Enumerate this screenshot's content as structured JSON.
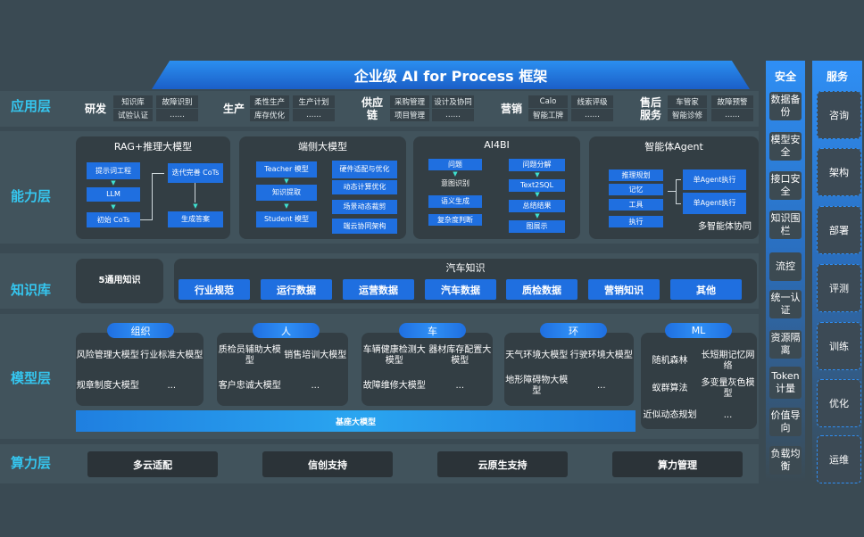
{
  "title": "企业级 AI for Process 框架",
  "layers": [
    "应用层",
    "能力层",
    "知识库",
    "模型层",
    "算力层"
  ],
  "app": [
    {
      "name": "研发",
      "items": [
        "知识库",
        "试验认证",
        "故障识别",
        "……"
      ]
    },
    {
      "name": "生产",
      "items": [
        "柔性生产",
        "库存优化",
        "生产计划",
        "……"
      ]
    },
    {
      "name": "供应链",
      "items": [
        "采购管理",
        "项目管理",
        "设计及协同",
        "……"
      ]
    },
    {
      "name": "营销",
      "items": [
        "Calo",
        "智能工牌",
        "线索评级",
        "……"
      ]
    },
    {
      "name": "售后服务",
      "items": [
        "车管家",
        "智能诊修",
        "故障预警",
        "……"
      ]
    }
  ],
  "cap": {
    "rag": {
      "title": "RAG+推理大模型",
      "items": [
        "提示词工程",
        "LLM",
        "初始 CoTs",
        "迭代完善 CoTs",
        "生成答案"
      ]
    },
    "edge": {
      "title": "端侧大模型",
      "items": [
        "Teacher 模型",
        "知识提取",
        "Student 模型",
        "硬件适配与优化",
        "动态计算优化",
        "场景动态裁剪",
        "端云协同架构"
      ]
    },
    "bi": {
      "title": "AI4BI",
      "items": [
        "问题",
        "意图识别",
        "语义生成",
        "复杂度判断",
        "问题分解",
        "Text2SQL",
        "总结结果",
        "图展示"
      ]
    },
    "agent": {
      "title": "智能体Agent",
      "items": [
        "推理规划",
        "记忆",
        "工具",
        "执行",
        "单Agent执行",
        "单Agent执行",
        "多智能体协同"
      ]
    }
  },
  "kb": {
    "general": "5通用知识",
    "car_title": "汽车知识",
    "items": [
      "行业规范",
      "运行数据",
      "运营数据",
      "汽车数据",
      "质检数据",
      "营销知识",
      "其他"
    ]
  },
  "model": {
    "groups": [
      {
        "name": "组织",
        "items": [
          "风险管理大模型",
          "行业标准大模型",
          "规章制度大模型",
          "..."
        ]
      },
      {
        "name": "人",
        "items": [
          "质检员辅助大模型",
          "销售培训大模型",
          "客户忠诚大模型",
          "..."
        ]
      },
      {
        "name": "车",
        "items": [
          "车辆健康检测大模型",
          "器材库存配置大模型",
          "故障维修大模型",
          "..."
        ]
      },
      {
        "name": "环",
        "items": [
          "天气环境大模型",
          "行驶环境大模型",
          "地形障碍物大模型",
          "..."
        ]
      },
      {
        "name": "ML",
        "items": [
          "随机森林",
          "长短期记忆网络",
          "蚁群算法",
          "多变量灰色模型",
          "近似动态规划",
          "..."
        ]
      }
    ],
    "base": "基座大模型"
  },
  "compute": [
    "多云适配",
    "信创支持",
    "云原生支持",
    "算力管理"
  ],
  "security": {
    "title": "安全",
    "items": [
      "数据备份",
      "模型安全",
      "接口安全",
      "知识围栏",
      "流控",
      "统一认证",
      "资源隔离",
      "Token计量",
      "价值导向",
      "负载均衡"
    ]
  },
  "service": {
    "title": "服务",
    "items": [
      "咨询",
      "架构",
      "部署",
      "评测",
      "训练",
      "优化",
      "运维"
    ]
  },
  "colors": {
    "background": "#3a4a53",
    "accent_blue": "#1f6fe0",
    "layer_label": "#35c6ef"
  }
}
